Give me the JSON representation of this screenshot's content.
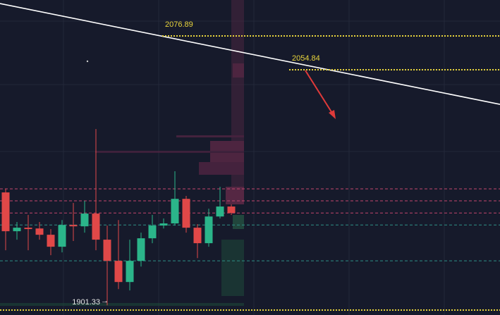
{
  "chart_data": {
    "type": "candlestick",
    "open": [
      1974.9,
      1949.6,
      1951.9,
      1951.4,
      1947.3,
      1939.5,
      1953.7,
      1952.8,
      1961.1,
      1944.1,
      1930.3,
      1916.5,
      1930.3,
      1945.0,
      1953.3,
      1954.7,
      1970.7,
      1951.9,
      1941.8,
      1959.2,
      1965.7
    ],
    "high": [
      1977.2,
      1955.6,
      1960.2,
      1955.6,
      1951.0,
      1956.9,
      1968.0,
      1969.4,
      2016.2,
      1953.3,
      1956.9,
      1944.1,
      1948.7,
      1960.2,
      1957.9,
      1988.7,
      1972.6,
      1954.2,
      1964.3,
      1978.6,
      1967.1
    ],
    "low": [
      1937.2,
      1944.1,
      1937.2,
      1944.1,
      1934.0,
      1935.8,
      1943.2,
      1948.7,
      1937.2,
      1901.33,
      1911.9,
      1911.0,
      1926.6,
      1941.8,
      1951.4,
      1953.3,
      1948.7,
      1932.1,
      1939.5,
      1957.9,
      1960.2
    ],
    "close": [
      1949.6,
      1951.9,
      1951.0,
      1947.3,
      1939.5,
      1953.7,
      1952.8,
      1961.1,
      1944.1,
      1930.3,
      1916.5,
      1930.3,
      1945.0,
      1953.3,
      1954.7,
      1970.7,
      1951.9,
      1941.8,
      1959.2,
      1965.7,
      1961.5
    ],
    "up_color": "#2bb58a",
    "down_color": "#e04848",
    "ylim": [
      1895.0,
      2100.3
    ],
    "levels": [
      2076.89,
      2054.84
    ],
    "unlabeled_levels": [
      1898.2
    ],
    "level_color": "#e8d43c",
    "dashed_levels": [
      {
        "value": 1977.2,
        "color": "#c2456e"
      },
      {
        "value": 1969.4,
        "color": "#c2456e"
      },
      {
        "value": 1961.5,
        "color": "#c2456e"
      },
      {
        "value": 1953.7,
        "color": "#2e8f86"
      },
      {
        "value": 1930.3,
        "color": "#2e8f86"
      }
    ],
    "trendline": {
      "start": 2098.0,
      "end": 2032.3,
      "color": "#ffffff"
    }
  }
}
